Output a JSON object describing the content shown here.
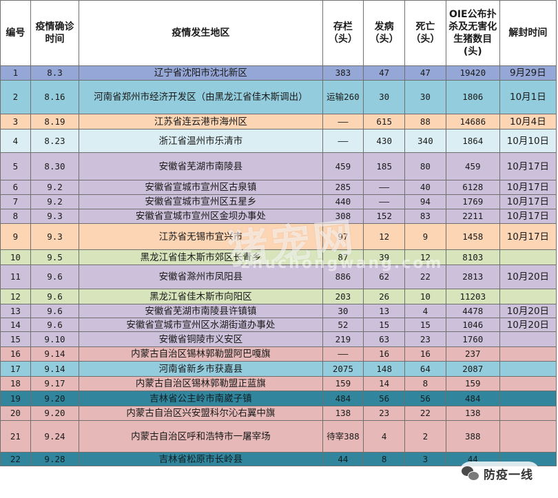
{
  "headers": {
    "no": "编号",
    "confirm_time": "疫情确诊时间",
    "region": "疫情发生地区",
    "stock": "存栏（头）",
    "sick": "发病（头）",
    "dead": "死亡（头）",
    "culled": "OIE公布扑杀及无害化生猪数目(头)",
    "unlock": "解封时间"
  },
  "rows": [
    {
      "no": "1",
      "date": "8.3",
      "region": "辽宁省沈阳市沈北新区",
      "stock": "383",
      "sick": "47",
      "dead": "47",
      "culled": "19420",
      "unlock": "9月29日",
      "color": "#95a7d6"
    },
    {
      "no": "2",
      "date": "8.16",
      "region": "河南省郑州市经济开发区（由黑龙江省佳木斯调出）",
      "stock": "运输260",
      "sick": "30",
      "dead": "30",
      "culled": "1806",
      "unlock": "10月1日",
      "color": "#93cddd"
    },
    {
      "no": "3",
      "date": "8.19",
      "region": "江苏省连云港市海州区",
      "stock": "——",
      "sick": "615",
      "dead": "88",
      "culled": "14686",
      "unlock": "10月4日",
      "color": "#fcd5b4"
    },
    {
      "no": "4",
      "date": "8.23",
      "region": "浙江省温州市乐清市",
      "stock": "——",
      "sick": "430",
      "dead": "340",
      "culled": "1864",
      "unlock": "10月10日",
      "color": "#daeef3"
    },
    {
      "no": "5",
      "date": "8.30",
      "region": "安徽省芜湖市南陵县",
      "stock": "459",
      "sick": "185",
      "dead": "80",
      "culled": "459",
      "unlock": "10月17日",
      "color": "#ccc0da"
    },
    {
      "no": "6",
      "date": "9.2",
      "region": "安徽省宣城市宣州区古泉镇",
      "stock": "285",
      "sick": "——",
      "dead": "40",
      "culled": "6128",
      "unlock": "10月17日",
      "color": "#ccc0da"
    },
    {
      "no": "7",
      "date": "9.2",
      "region": "安徽省宣城市宣州区五星乡",
      "stock": "440",
      "sick": "——",
      "dead": "94",
      "culled": "1769",
      "unlock": "10月17日",
      "color": "#ccc0da"
    },
    {
      "no": "8",
      "date": "9.3",
      "region": "安徽省宣城市宣州区金坝办事处",
      "stock": "308",
      "sick": "152",
      "dead": "83",
      "culled": "2211",
      "unlock": "10月17日",
      "color": "#ccc0da"
    },
    {
      "no": "9",
      "date": "9.3",
      "region": "江苏省无锡市宜兴市",
      "stock": "97",
      "sick": "12",
      "dead": "9",
      "culled": "1458",
      "unlock": "10月17日",
      "color": "#fcd5b4"
    },
    {
      "no": "10",
      "date": "9.5",
      "region": "黑龙江省佳木斯市郊区长青乡",
      "stock": "87",
      "sick": "39",
      "dead": "12",
      "culled": "8103",
      "unlock": "",
      "color": "#d7e4bc"
    },
    {
      "no": "11",
      "date": "9.6",
      "region": "安徽省滁州市凤阳县",
      "stock": "886",
      "sick": "62",
      "dead": "22",
      "culled": "2813",
      "unlock": "10月20日",
      "color": "#ccc0da"
    },
    {
      "no": "12",
      "date": "9.6",
      "region": "黑龙江省佳木斯市向阳区",
      "stock": "203",
      "sick": "26",
      "dead": "10",
      "culled": "11203",
      "unlock": "",
      "color": "#d7e4bc"
    },
    {
      "no": "13",
      "date": "9.6",
      "region": "安徽省芜湖市南陵县许镇镇",
      "stock": "30",
      "sick": "13",
      "dead": "4",
      "culled": "4478",
      "unlock": "10月20日",
      "color": "#ccc0da"
    },
    {
      "no": "14",
      "date": "9.6",
      "region": "安徽省宣城市宣州区水湖街道办事处",
      "stock": "52",
      "sick": "15",
      "dead": "15",
      "culled": "1046",
      "unlock": "10月20日",
      "color": "#ccc0da"
    },
    {
      "no": "15",
      "date": "9.10",
      "region": "安徽省铜陵市义安区",
      "stock": "219",
      "sick": "63",
      "dead": "23",
      "culled": "1760",
      "unlock": "",
      "color": "#ccc0da"
    },
    {
      "no": "16",
      "date": "9.14",
      "region": "内蒙古自治区锡林郭勒盟阿巴嘎旗",
      "stock": "——",
      "sick": "16",
      "dead": "16",
      "culled": "237",
      "unlock": "",
      "color": "#e6b9b8"
    },
    {
      "no": "17",
      "date": "9.14",
      "region": "河南省新乡市获嘉县",
      "stock": "2075",
      "sick": "148",
      "dead": "64",
      "culled": "2087",
      "unlock": "",
      "color": "#93cddd"
    },
    {
      "no": "18",
      "date": "9.17",
      "region": "内蒙古自治区锡林郭勒盟正蓝旗",
      "stock": "159",
      "sick": "14",
      "dead": "8",
      "culled": "159",
      "unlock": "",
      "color": "#e6b9b8"
    },
    {
      "no": "19",
      "date": "9.20",
      "region": "吉林省公主岭市南崴子镇",
      "stock": "484",
      "sick": "56",
      "dead": "56",
      "culled": "484",
      "unlock": "",
      "color": "#31859c"
    },
    {
      "no": "20",
      "date": "9.20",
      "region": "内蒙古自治区兴安盟科尔沁右翼中旗",
      "stock": "138",
      "sick": "23",
      "dead": "22",
      "culled": "138",
      "unlock": "",
      "color": "#e6b9b8"
    },
    {
      "no": "21",
      "date": "9.24",
      "region": "内蒙古自治区呼和浩特市一屠宰场",
      "stock": "待宰388",
      "sick": "4",
      "dead": "2",
      "culled": "388",
      "unlock": "",
      "color": "#e6b9b8"
    },
    {
      "no": "22",
      "date": "9.28",
      "region": "吉林省松原市长岭县",
      "stock": "44",
      "sick": "8",
      "dead": "3",
      "culled": "44",
      "unlock": "",
      "color": "#31859c"
    }
  ],
  "watermark": {
    "main": "猪宠网",
    "sub": "zhuchongwang.com"
  },
  "badge": {
    "icon": "wechat-icon",
    "text": "防疫一线"
  }
}
